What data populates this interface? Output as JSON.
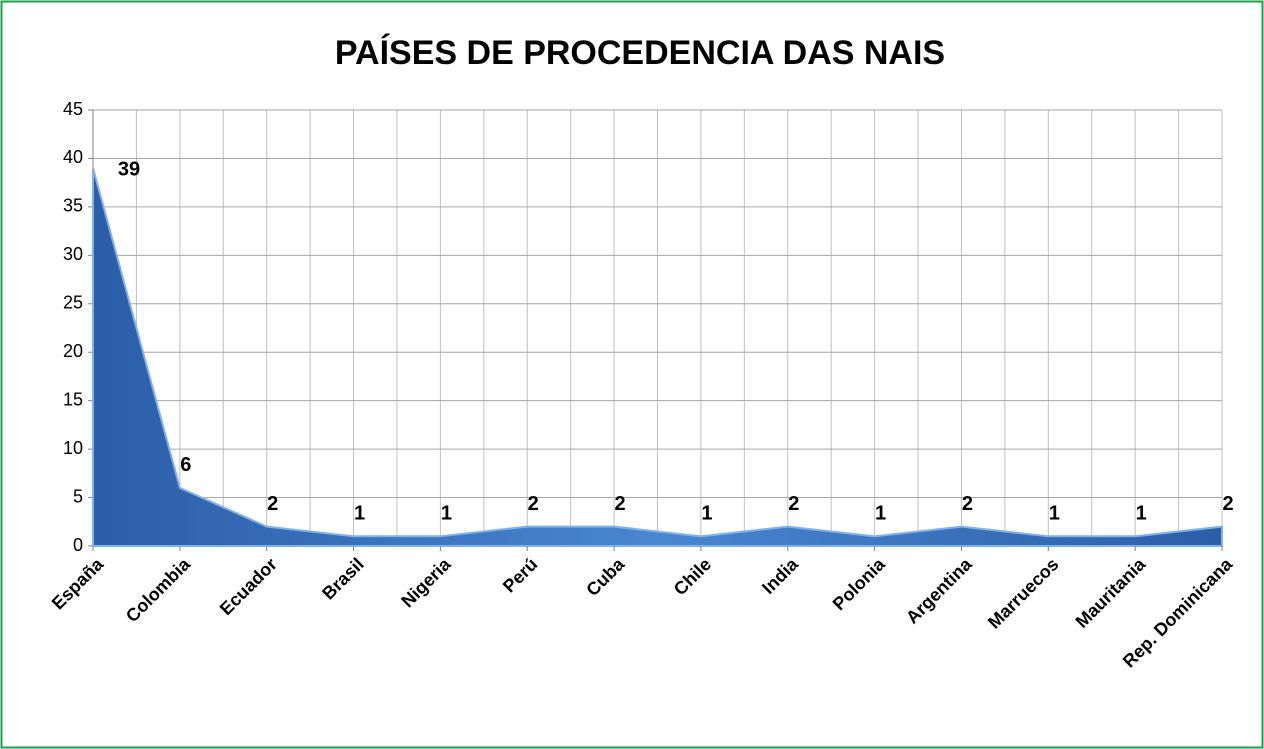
{
  "chart_data": {
    "type": "area",
    "title": "PAÍSES DE PROCEDENCIA DAS NAIS",
    "categories": [
      "España",
      "Colombia",
      "Ecuador",
      "Brasil",
      "Nigeria",
      "Perú",
      "Cuba",
      "Chile",
      "India",
      "Polonia",
      "Argentina",
      "Marruecos",
      "Mauritania",
      "Rep. Dominicana"
    ],
    "values": [
      39,
      6,
      2,
      1,
      1,
      2,
      2,
      1,
      2,
      1,
      2,
      1,
      1,
      2
    ],
    "color": "#3a6fb8",
    "ylim": [
      0,
      45
    ],
    "yticks": [
      0,
      5,
      10,
      15,
      20,
      25,
      30,
      35,
      40,
      45
    ],
    "grid": true
  }
}
